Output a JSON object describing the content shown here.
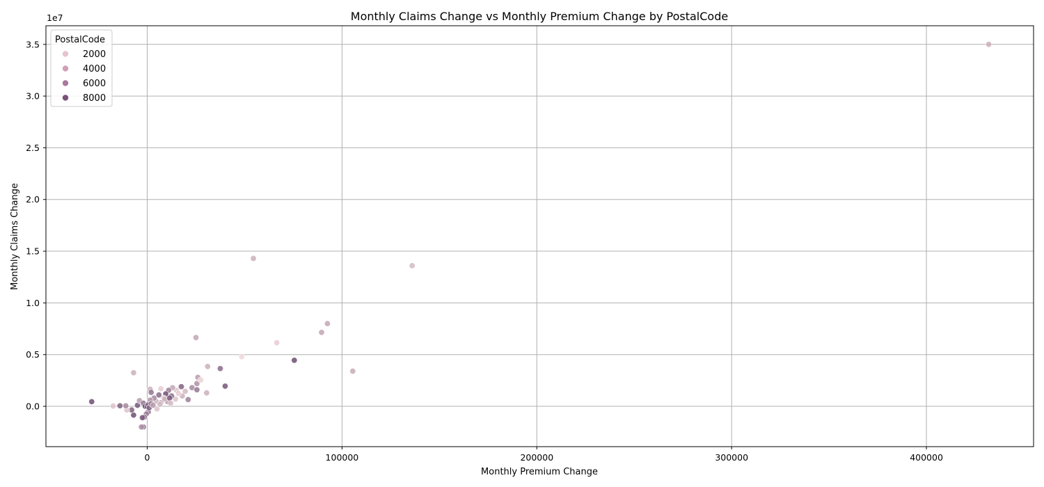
{
  "chart_data": {
    "type": "scatter",
    "title": "Monthly Claims Change vs Monthly Premium Change by PostalCode",
    "xlabel": "Monthly Premium Change",
    "ylabel": "Monthly Claims Change",
    "y_offset_label": "1e7",
    "xlim": [
      -52000,
      455000
    ],
    "ylim": [
      -3900000,
      36800000
    ],
    "x_ticks": [
      0,
      100000,
      200000,
      300000,
      400000
    ],
    "x_tick_labels": [
      "0",
      "100000",
      "200000",
      "300000",
      "400000"
    ],
    "y_ticks": [
      0,
      5000000,
      10000000,
      15000000,
      20000000,
      25000000,
      30000000,
      35000000
    ],
    "y_tick_labels": [
      "0.0",
      "0.5",
      "1.0",
      "1.5",
      "2.0",
      "2.5",
      "3.0",
      "3.5"
    ],
    "grid": true,
    "hue_variable": "PostalCode",
    "legend": {
      "title": "PostalCode",
      "placement": "upper-left",
      "entries": [
        {
          "label": "2000",
          "color": "#e6c4cd"
        },
        {
          "label": "4000",
          "color": "#d1a0b6"
        },
        {
          "label": "6000",
          "color": "#a9789d"
        },
        {
          "label": "8000",
          "color": "#7a5178"
        }
      ]
    },
    "color_scale": {
      "domain": [
        1000,
        9000
      ],
      "range": [
        "#f0d7d9",
        "#5b3a64"
      ]
    },
    "points": [
      {
        "x": 432000,
        "y": 35000000,
        "code": 3000
      },
      {
        "x": 136000,
        "y": 13600000,
        "code": 2500
      },
      {
        "x": 54500,
        "y": 14300000,
        "code": 3000
      },
      {
        "x": 92500,
        "y": 8000000,
        "code": 3500
      },
      {
        "x": 89500,
        "y": 7150000,
        "code": 3500
      },
      {
        "x": 66500,
        "y": 6150000,
        "code": 1500
      },
      {
        "x": 25000,
        "y": 6650000,
        "code": 3500
      },
      {
        "x": 48500,
        "y": 4800000,
        "code": 1000
      },
      {
        "x": 75500,
        "y": 4450000,
        "code": 8000
      },
      {
        "x": 105500,
        "y": 3400000,
        "code": 3200
      },
      {
        "x": 37500,
        "y": 3650000,
        "code": 6500
      },
      {
        "x": 31000,
        "y": 3850000,
        "code": 3000
      },
      {
        "x": -7000,
        "y": 3250000,
        "code": 3000
      },
      {
        "x": 40000,
        "y": 1950000,
        "code": 7500
      },
      {
        "x": 26000,
        "y": 2800000,
        "code": 4000
      },
      {
        "x": 25500,
        "y": 2200000,
        "code": 4500
      },
      {
        "x": 27500,
        "y": 2550000,
        "code": 1200
      },
      {
        "x": 30500,
        "y": 1300000,
        "code": 3000
      },
      {
        "x": 23000,
        "y": 1800000,
        "code": 5000
      },
      {
        "x": 17500,
        "y": 1900000,
        "code": 7000
      },
      {
        "x": 25500,
        "y": 1600000,
        "code": 6000
      },
      {
        "x": 21000,
        "y": 650000,
        "code": 5500
      },
      {
        "x": 19500,
        "y": 1450000,
        "code": 2500
      },
      {
        "x": 18000,
        "y": 1000000,
        "code": 3000
      },
      {
        "x": 15000,
        "y": 1550000,
        "code": 2000
      },
      {
        "x": 13000,
        "y": 1800000,
        "code": 3500
      },
      {
        "x": 14500,
        "y": 700000,
        "code": 2000
      },
      {
        "x": 12500,
        "y": 1000000,
        "code": 6500
      },
      {
        "x": 11000,
        "y": 1550000,
        "code": 5500
      },
      {
        "x": 10500,
        "y": 450000,
        "code": 4500
      },
      {
        "x": 9500,
        "y": 1200000,
        "code": 8000
      },
      {
        "x": 8500,
        "y": 800000,
        "code": 2000
      },
      {
        "x": 7000,
        "y": 1700000,
        "code": 1500
      },
      {
        "x": 7000,
        "y": 350000,
        "code": 3500
      },
      {
        "x": 6000,
        "y": 1100000,
        "code": 6500
      },
      {
        "x": 5000,
        "y": -250000,
        "code": 2000
      },
      {
        "x": 4500,
        "y": 500000,
        "code": 3000
      },
      {
        "x": 3500,
        "y": 800000,
        "code": 5000
      },
      {
        "x": 1500,
        "y": 1650000,
        "code": 3000
      },
      {
        "x": 2000,
        "y": 1350000,
        "code": 6000
      },
      {
        "x": 1500,
        "y": 600000,
        "code": 4500
      },
      {
        "x": 500,
        "y": -550000,
        "code": 6500
      },
      {
        "x": -500,
        "y": -750000,
        "code": 5500
      },
      {
        "x": -1500,
        "y": -1050000,
        "code": 6000
      },
      {
        "x": -2500,
        "y": -1100000,
        "code": 7500
      },
      {
        "x": -2000,
        "y": -2000000,
        "code": 6500
      },
      {
        "x": -3000,
        "y": -2000000,
        "code": 4500
      },
      {
        "x": -7000,
        "y": -850000,
        "code": 8000
      },
      {
        "x": -8000,
        "y": -350000,
        "code": 7000
      },
      {
        "x": -10500,
        "y": -350000,
        "code": 2000
      },
      {
        "x": -11000,
        "y": 50000,
        "code": 5000
      },
      {
        "x": -14000,
        "y": 50000,
        "code": 7000
      },
      {
        "x": -17500,
        "y": 30000,
        "code": 2000
      },
      {
        "x": -28500,
        "y": 450000,
        "code": 8000
      },
      {
        "x": -5000,
        "y": 100000,
        "code": 7500
      },
      {
        "x": -4000,
        "y": 550000,
        "code": 4000
      },
      {
        "x": -2000,
        "y": 300000,
        "code": 6000
      },
      {
        "x": -1000,
        "y": 0,
        "code": 8500
      },
      {
        "x": 0,
        "y": 0,
        "code": 9000
      },
      {
        "x": 500,
        "y": 150000,
        "code": 6500
      },
      {
        "x": 1000,
        "y": -150000,
        "code": 7000
      },
      {
        "x": 2000,
        "y": 250000,
        "code": 5500
      },
      {
        "x": 3000,
        "y": 100000,
        "code": 4000
      },
      {
        "x": 6500,
        "y": 200000,
        "code": 2500
      },
      {
        "x": 9000,
        "y": 700000,
        "code": 3000
      },
      {
        "x": 11500,
        "y": 800000,
        "code": 7500
      },
      {
        "x": 12000,
        "y": 300000,
        "code": 2500
      },
      {
        "x": 16000,
        "y": 1250000,
        "code": 1500
      }
    ]
  }
}
